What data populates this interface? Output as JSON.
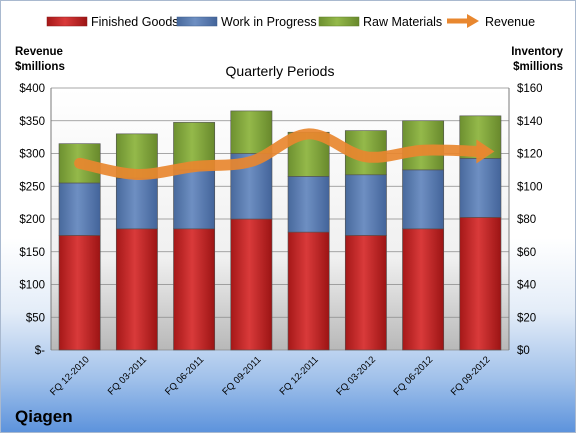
{
  "company": "Qiagen",
  "chart_data": {
    "type": "bar",
    "subtype": "stacked-bar-with-line",
    "title": "Quarterly Periods",
    "left_axis": {
      "title": [
        "Revenue",
        "$millions"
      ],
      "range": [
        0,
        400
      ],
      "ticks": [
        "$-",
        "$50",
        "$100",
        "$150",
        "$200",
        "$250",
        "$300",
        "$350",
        "$400"
      ]
    },
    "right_axis": {
      "title": [
        "Inventory",
        "$millions"
      ],
      "range": [
        0,
        160
      ],
      "ticks": [
        "$0",
        "$20",
        "$40",
        "$60",
        "$80",
        "$100",
        "$120",
        "$140",
        "$160"
      ]
    },
    "categories": [
      "FQ 12-2010",
      "FQ 03-2011",
      "FQ 06-2011",
      "FQ 09-2011",
      "FQ 12-2011",
      "FQ 03-2012",
      "FQ 06-2012",
      "FQ 09-2012"
    ],
    "series": [
      {
        "name": "Finished Goods",
        "axis": "right",
        "color": "#cc2a2a",
        "values": [
          70,
          74,
          74,
          80,
          72,
          70,
          74,
          81
        ]
      },
      {
        "name": "Work in Progress",
        "axis": "right",
        "color": "#5b7fb5",
        "values": [
          32,
          31,
          36,
          40,
          34,
          37,
          36,
          36
        ]
      },
      {
        "name": "Raw Materials",
        "axis": "right",
        "color": "#82a83c",
        "values": [
          24,
          27,
          29,
          26,
          27,
          27,
          30,
          26
        ]
      },
      {
        "name": "Revenue",
        "type": "line",
        "axis": "left",
        "color": "#e8872f",
        "values": [
          285,
          268,
          280,
          288,
          330,
          295,
          305,
          303
        ]
      }
    ],
    "grid": true,
    "legend": "top"
  }
}
